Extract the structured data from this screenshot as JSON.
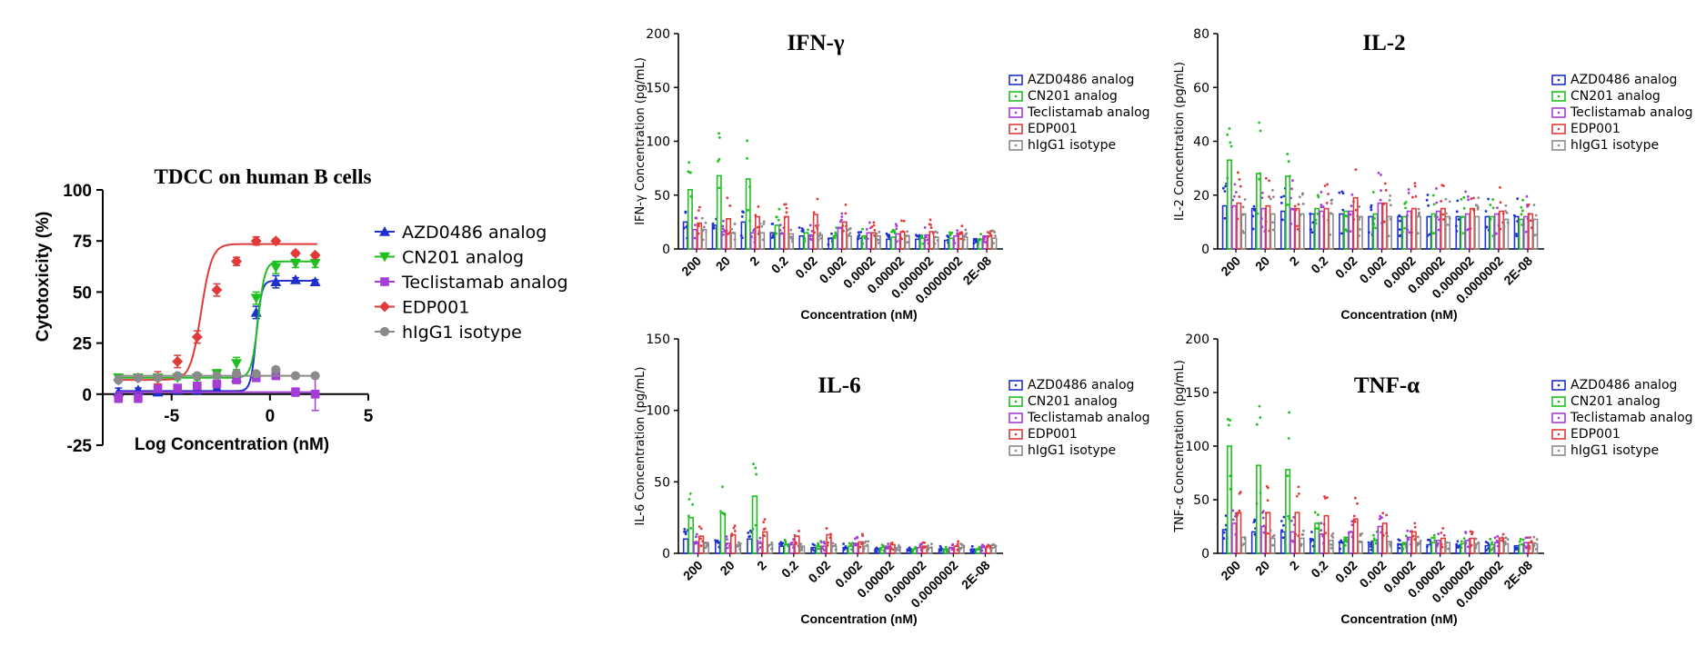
{
  "colors": {
    "AZD0486 analog": "#1f2fd0",
    "CN201 analog": "#1fbf1f",
    "Teclistamab analog": "#a53dd6",
    "EDP001": "#e03a3a",
    "hIgG1 isotype": "#8a8a8a"
  },
  "chart_data": [
    {
      "id": "tdcc",
      "type": "scatter",
      "title": "TDCC on human B cells",
      "xlabel": "Log Concentration (nM)",
      "ylabel": "Cytotoxicity (%)",
      "xlim": [
        -8.5,
        5
      ],
      "ylim": [
        -25,
        100
      ],
      "xticks": [
        -5,
        0,
        5
      ],
      "xtick_labels": [
        "-5",
        "0",
        "5"
      ],
      "yticks": [
        -25,
        0,
        25,
        50,
        75,
        100
      ],
      "ytick_labels": [
        "-25",
        "0",
        "25",
        "50",
        "75",
        "100"
      ],
      "legend_position": "right",
      "x": [
        -7.7,
        -6.7,
        -5.7,
        -4.7,
        -3.7,
        -2.7,
        -1.7,
        -0.7,
        0.3,
        1.3,
        2.3
      ],
      "series": [
        {
          "name": "AZD0486 analog",
          "marker": "triangle-up",
          "y": [
            1,
            2,
            1,
            2,
            2,
            3,
            8,
            40,
            55,
            56,
            55
          ],
          "err": [
            2,
            1,
            1,
            1,
            1,
            1,
            2,
            3,
            3,
            1,
            1
          ],
          "fit": {
            "bottom": 1.5,
            "top": 55.5,
            "logec50": -0.7,
            "hill": 3.2
          }
        },
        {
          "name": "CN201 analog",
          "marker": "triangle-down",
          "y": [
            8,
            8,
            8,
            8,
            8,
            10,
            15,
            47,
            62,
            64,
            64
          ],
          "err": [
            1,
            1,
            1,
            1,
            1,
            2,
            3,
            3,
            3,
            2,
            2
          ],
          "fit": {
            "bottom": 8,
            "top": 65,
            "logec50": -0.6,
            "hill": 2.5
          }
        },
        {
          "name": "Teclistamab analog",
          "marker": "square",
          "y": [
            -2,
            -2,
            3,
            3,
            4,
            5,
            7,
            8,
            9,
            1,
            0
          ],
          "err": [
            2,
            2,
            1,
            1,
            1,
            1,
            1,
            1,
            1,
            2,
            8
          ],
          "fit": {
            "bottom": 1,
            "top": 1,
            "logec50": 0,
            "hill": 1
          }
        },
        {
          "name": "EDP001",
          "marker": "diamond",
          "y": [
            7,
            8,
            8,
            16,
            28,
            51,
            65,
            75,
            75,
            69,
            68
          ],
          "err": [
            1,
            1,
            3,
            3,
            3,
            3,
            2,
            2,
            1,
            1,
            1
          ],
          "fit": {
            "bottom": 7,
            "top": 73.5,
            "logec50": -3.5,
            "hill": 1.6
          }
        },
        {
          "name": "hIgG1 isotype",
          "marker": "circle",
          "y": [
            7,
            8,
            8,
            9,
            9,
            9,
            10,
            10,
            12,
            9,
            9
          ],
          "err": [
            1,
            1,
            1,
            1,
            1,
            1,
            1,
            1,
            1,
            1,
            1
          ],
          "fit": {
            "bottom": 9,
            "top": 9,
            "logec50": 0,
            "hill": 1
          }
        }
      ]
    },
    {
      "id": "ifng",
      "type": "bar",
      "title": "IFN-γ",
      "ylabel": "IFN-γ Concentration (pg/mL)",
      "xlabel": "Concentration (nM)",
      "ylim": [
        0,
        200
      ],
      "yticks": [
        0,
        50,
        100,
        150,
        200
      ],
      "ytick_labels": [
        "0",
        "50",
        "100",
        "150",
        "200"
      ],
      "categories": [
        "200",
        "20",
        "2",
        "0.2",
        "0.02",
        "0.002",
        "0.0002",
        "0.00002",
        "0.000002",
        "0.0000002",
        "2E-08"
      ],
      "xtick_labels": [
        "200",
        "20",
        "2",
        "0.2",
        "0.02",
        "0.002",
        "0.0002",
        "0.00002",
        "0.000002",
        "0.0000002",
        "2E-08"
      ],
      "legend_position": "right",
      "series": [
        {
          "name": "AZD0486 analog",
          "values": [
            25,
            22,
            25,
            15,
            12,
            10,
            10,
            9,
            9,
            8,
            8
          ]
        },
        {
          "name": "CN201 analog",
          "values": [
            55,
            68,
            65,
            22,
            15,
            12,
            12,
            11,
            10,
            10,
            9
          ]
        },
        {
          "name": "Teclistamab analog",
          "values": [
            18,
            16,
            15,
            14,
            13,
            20,
            15,
            14,
            13,
            12,
            12
          ]
        },
        {
          "name": "EDP001",
          "values": [
            24,
            28,
            30,
            30,
            32,
            25,
            15,
            16,
            16,
            14,
            12
          ]
        },
        {
          "name": "hIgG1 isotype",
          "values": [
            18,
            15,
            15,
            14,
            13,
            12,
            12,
            12,
            11,
            11,
            10
          ]
        }
      ]
    },
    {
      "id": "il2",
      "type": "bar",
      "title": "IL-2",
      "ylabel": "IL-2 Concentration (pg/mL)",
      "xlabel": "Concentration (nM)",
      "ylim": [
        0,
        80
      ],
      "yticks": [
        0,
        20,
        40,
        60,
        80
      ],
      "ytick_labels": [
        "0",
        "20",
        "40",
        "60",
        "80"
      ],
      "categories": [
        "200",
        "20",
        "2",
        "0.2",
        "0.02",
        "0.002",
        "0.0002",
        "0.00002",
        "0.000002",
        "0.0000002",
        "2E-08"
      ],
      "xtick_labels": [
        "200",
        "20",
        "2",
        "0.2",
        "0.02",
        "0.002",
        "0.0002",
        "0.00002",
        "0.000002",
        "0.0000002",
        "2E-08"
      ],
      "legend_position": "right",
      "series": [
        {
          "name": "AZD0486 analog",
          "values": [
            16,
            15,
            14,
            13,
            13,
            12,
            12,
            12,
            12,
            12,
            12
          ]
        },
        {
          "name": "CN201 analog",
          "values": [
            33,
            28,
            27,
            15,
            14,
            13,
            12,
            13,
            12,
            12,
            11
          ]
        },
        {
          "name": "Teclistamab analog",
          "values": [
            16,
            15,
            15,
            14,
            14,
            17,
            14,
            14,
            13,
            13,
            12
          ]
        },
        {
          "name": "EDP001",
          "values": [
            17,
            16,
            15,
            15,
            19,
            17,
            15,
            15,
            15,
            14,
            13
          ]
        },
        {
          "name": "hIgG1 isotype",
          "values": [
            13,
            13,
            13,
            13,
            12,
            12,
            12,
            12,
            12,
            11,
            11
          ]
        }
      ]
    },
    {
      "id": "il6",
      "type": "bar",
      "title": "IL-6",
      "ylabel": "IL-6 Concentration (pg/mL)",
      "xlabel": "Concentration (nM)",
      "ylim": [
        0,
        150
      ],
      "yticks": [
        0,
        50,
        100,
        150
      ],
      "ytick_labels": [
        "0",
        "50",
        "100",
        "150"
      ],
      "categories": [
        "200",
        "20",
        "2",
        "0.2",
        "0.02",
        "0.002",
        "0.00002",
        "0.000002",
        "0.0000002",
        "2E-08"
      ],
      "xtick_labels": [
        "200",
        "20",
        "2",
        "0.2",
        "0.02",
        "0.002",
        "0.00002",
        "0.000002",
        "0.0000002",
        "2E-08"
      ],
      "legend_position": "right",
      "series": [
        {
          "name": "AZD0486 analog",
          "values": [
            10,
            8,
            10,
            5,
            4,
            4,
            3,
            3,
            3,
            3
          ]
        },
        {
          "name": "CN201 analog",
          "values": [
            25,
            28,
            40,
            6,
            5,
            5,
            4,
            3,
            3,
            3
          ]
        },
        {
          "name": "Teclistamab analog",
          "values": [
            8,
            7,
            7,
            6,
            5,
            7,
            5,
            4,
            4,
            4
          ]
        },
        {
          "name": "EDP001",
          "values": [
            12,
            13,
            15,
            12,
            13,
            8,
            6,
            5,
            5,
            5
          ]
        },
        {
          "name": "hIgG1 isotype",
          "values": [
            7,
            6,
            6,
            5,
            5,
            5,
            4,
            4,
            4,
            4
          ]
        }
      ]
    },
    {
      "id": "tnfa",
      "type": "bar",
      "title": "TNF-α",
      "ylabel": "TNF-α Concentration (pg/mL)",
      "xlabel": "Concentration (nM)",
      "ylim": [
        0,
        200
      ],
      "yticks": [
        0,
        50,
        100,
        150,
        200
      ],
      "ytick_labels": [
        "0",
        "50",
        "100",
        "150",
        "200"
      ],
      "categories": [
        "200",
        "20",
        "2",
        "0.2",
        "0.02",
        "0.002",
        "0.0002",
        "0.00002",
        "0.000002",
        "0.0000002",
        "2E-08"
      ],
      "xtick_labels": [
        "200",
        "20",
        "2",
        "0.2",
        "0.02",
        "0.002",
        "0.0002",
        "0.00002",
        "0.000002",
        "0.0000002",
        "2E-08"
      ],
      "legend_position": "right",
      "series": [
        {
          "name": "AZD0486 analog",
          "values": [
            22,
            20,
            20,
            12,
            10,
            8,
            8,
            8,
            7,
            7,
            7
          ]
        },
        {
          "name": "CN201 analog",
          "values": [
            100,
            82,
            78,
            28,
            15,
            12,
            10,
            10,
            9,
            8,
            8
          ]
        },
        {
          "name": "Teclistamab analog",
          "values": [
            28,
            25,
            20,
            18,
            20,
            25,
            15,
            12,
            12,
            10,
            10
          ]
        },
        {
          "name": "EDP001",
          "values": [
            38,
            38,
            38,
            35,
            32,
            28,
            20,
            14,
            14,
            12,
            10
          ]
        },
        {
          "name": "hIgG1 isotype",
          "values": [
            15,
            14,
            14,
            12,
            11,
            11,
            10,
            10,
            9,
            9,
            9
          ]
        }
      ]
    }
  ]
}
